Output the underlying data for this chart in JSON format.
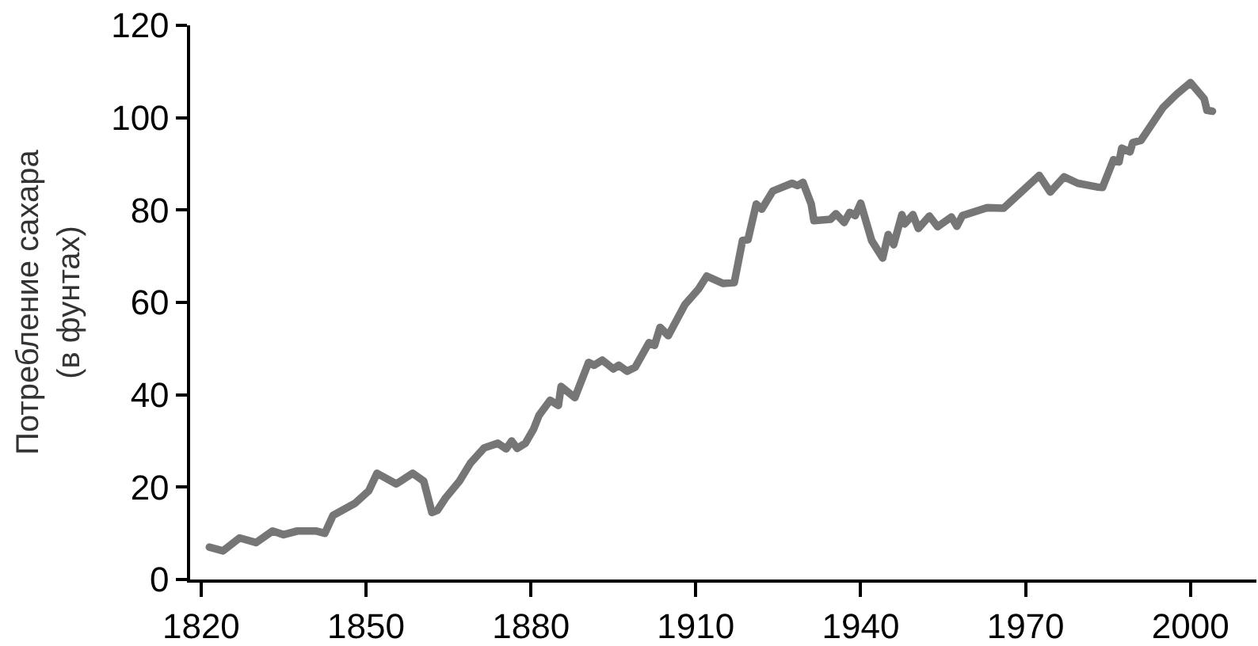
{
  "chart_data": {
    "type": "line",
    "ylabel": "Потребление сахара\n(в фунтах)",
    "x": [
      1821.5,
      1824,
      1827,
      1830,
      1833,
      1835,
      1837.5,
      1841,
      1842.5,
      1844,
      1848,
      1850.5,
      1852,
      1855.5,
      1858.5,
      1860.5,
      1862,
      1863,
      1864.5,
      1867,
      1869,
      1871.5,
      1874,
      1875.5,
      1876.5,
      1877.5,
      1879,
      1880.5,
      1881.5,
      1883.5,
      1885,
      1885.5,
      1888,
      1890.5,
      1891.5,
      1893,
      1895,
      1896,
      1897.5,
      1899,
      1901.5,
      1902.5,
      1903.5,
      1905,
      1908,
      1910.5,
      1912,
      1915,
      1917,
      1918.5,
      1919.5,
      1921,
      1922,
      1924,
      1927.5,
      1928.5,
      1929.5,
      1931,
      1931.5,
      1934.5,
      1935.5,
      1937,
      1938,
      1939,
      1940,
      1942,
      1944,
      1945,
      1946,
      1947.5,
      1948,
      1949.5,
      1950.5,
      1952.5,
      1954,
      1956.5,
      1957.5,
      1958.5,
      1963,
      1966,
      1972.5,
      1974.5,
      1977,
      1979.5,
      1983,
      1984,
      1986,
      1987,
      1987.5,
      1989,
      1989.5,
      1991,
      1995,
      1997.5,
      2000,
      2001,
      2002.5,
      2003,
      2004
    ],
    "series": [
      {
        "color": "#767676",
        "values": [
          7,
          6.2,
          9,
          8,
          10.5,
          9.7,
          10.5,
          10.5,
          10,
          13.9,
          16.5,
          19.2,
          23,
          20.7,
          23,
          21.3,
          14.5,
          15,
          17.7,
          21.3,
          25.2,
          28.5,
          29.5,
          28.3,
          30,
          28.4,
          29.5,
          32.6,
          35.6,
          38.8,
          37.7,
          41.8,
          39.4,
          47,
          46.4,
          47.5,
          45.6,
          46.4,
          45.1,
          46,
          51.3,
          50.7,
          54.6,
          52.8,
          59.5,
          62.9,
          65.7,
          64.1,
          64.3,
          73.4,
          73.6,
          81.3,
          80.2,
          84.1,
          85.8,
          85.3,
          86,
          81.3,
          77.7,
          78,
          79.2,
          77.3,
          79.5,
          78.8,
          81.5,
          73.4,
          69.6,
          74.7,
          72.5,
          79,
          77,
          79,
          76,
          78.7,
          76.4,
          78.5,
          76.5,
          78.8,
          80.5,
          80.4,
          87.5,
          83.9,
          87.2,
          85.8,
          85,
          84.9,
          90.9,
          90.4,
          93.4,
          92.6,
          94.6,
          95.1,
          102.2,
          105.1,
          107.6,
          106.2,
          104.1,
          101.6,
          101.4
        ]
      }
    ],
    "xlim": [
      1818,
      2012
    ],
    "xticks": [
      1820,
      1850,
      1880,
      1910,
      1940,
      1970,
      2000
    ],
    "ylim": [
      0,
      120
    ],
    "yticks": [
      0,
      20,
      40,
      60,
      80,
      100,
      120
    ],
    "marker": "none",
    "line_style": "solid"
  }
}
